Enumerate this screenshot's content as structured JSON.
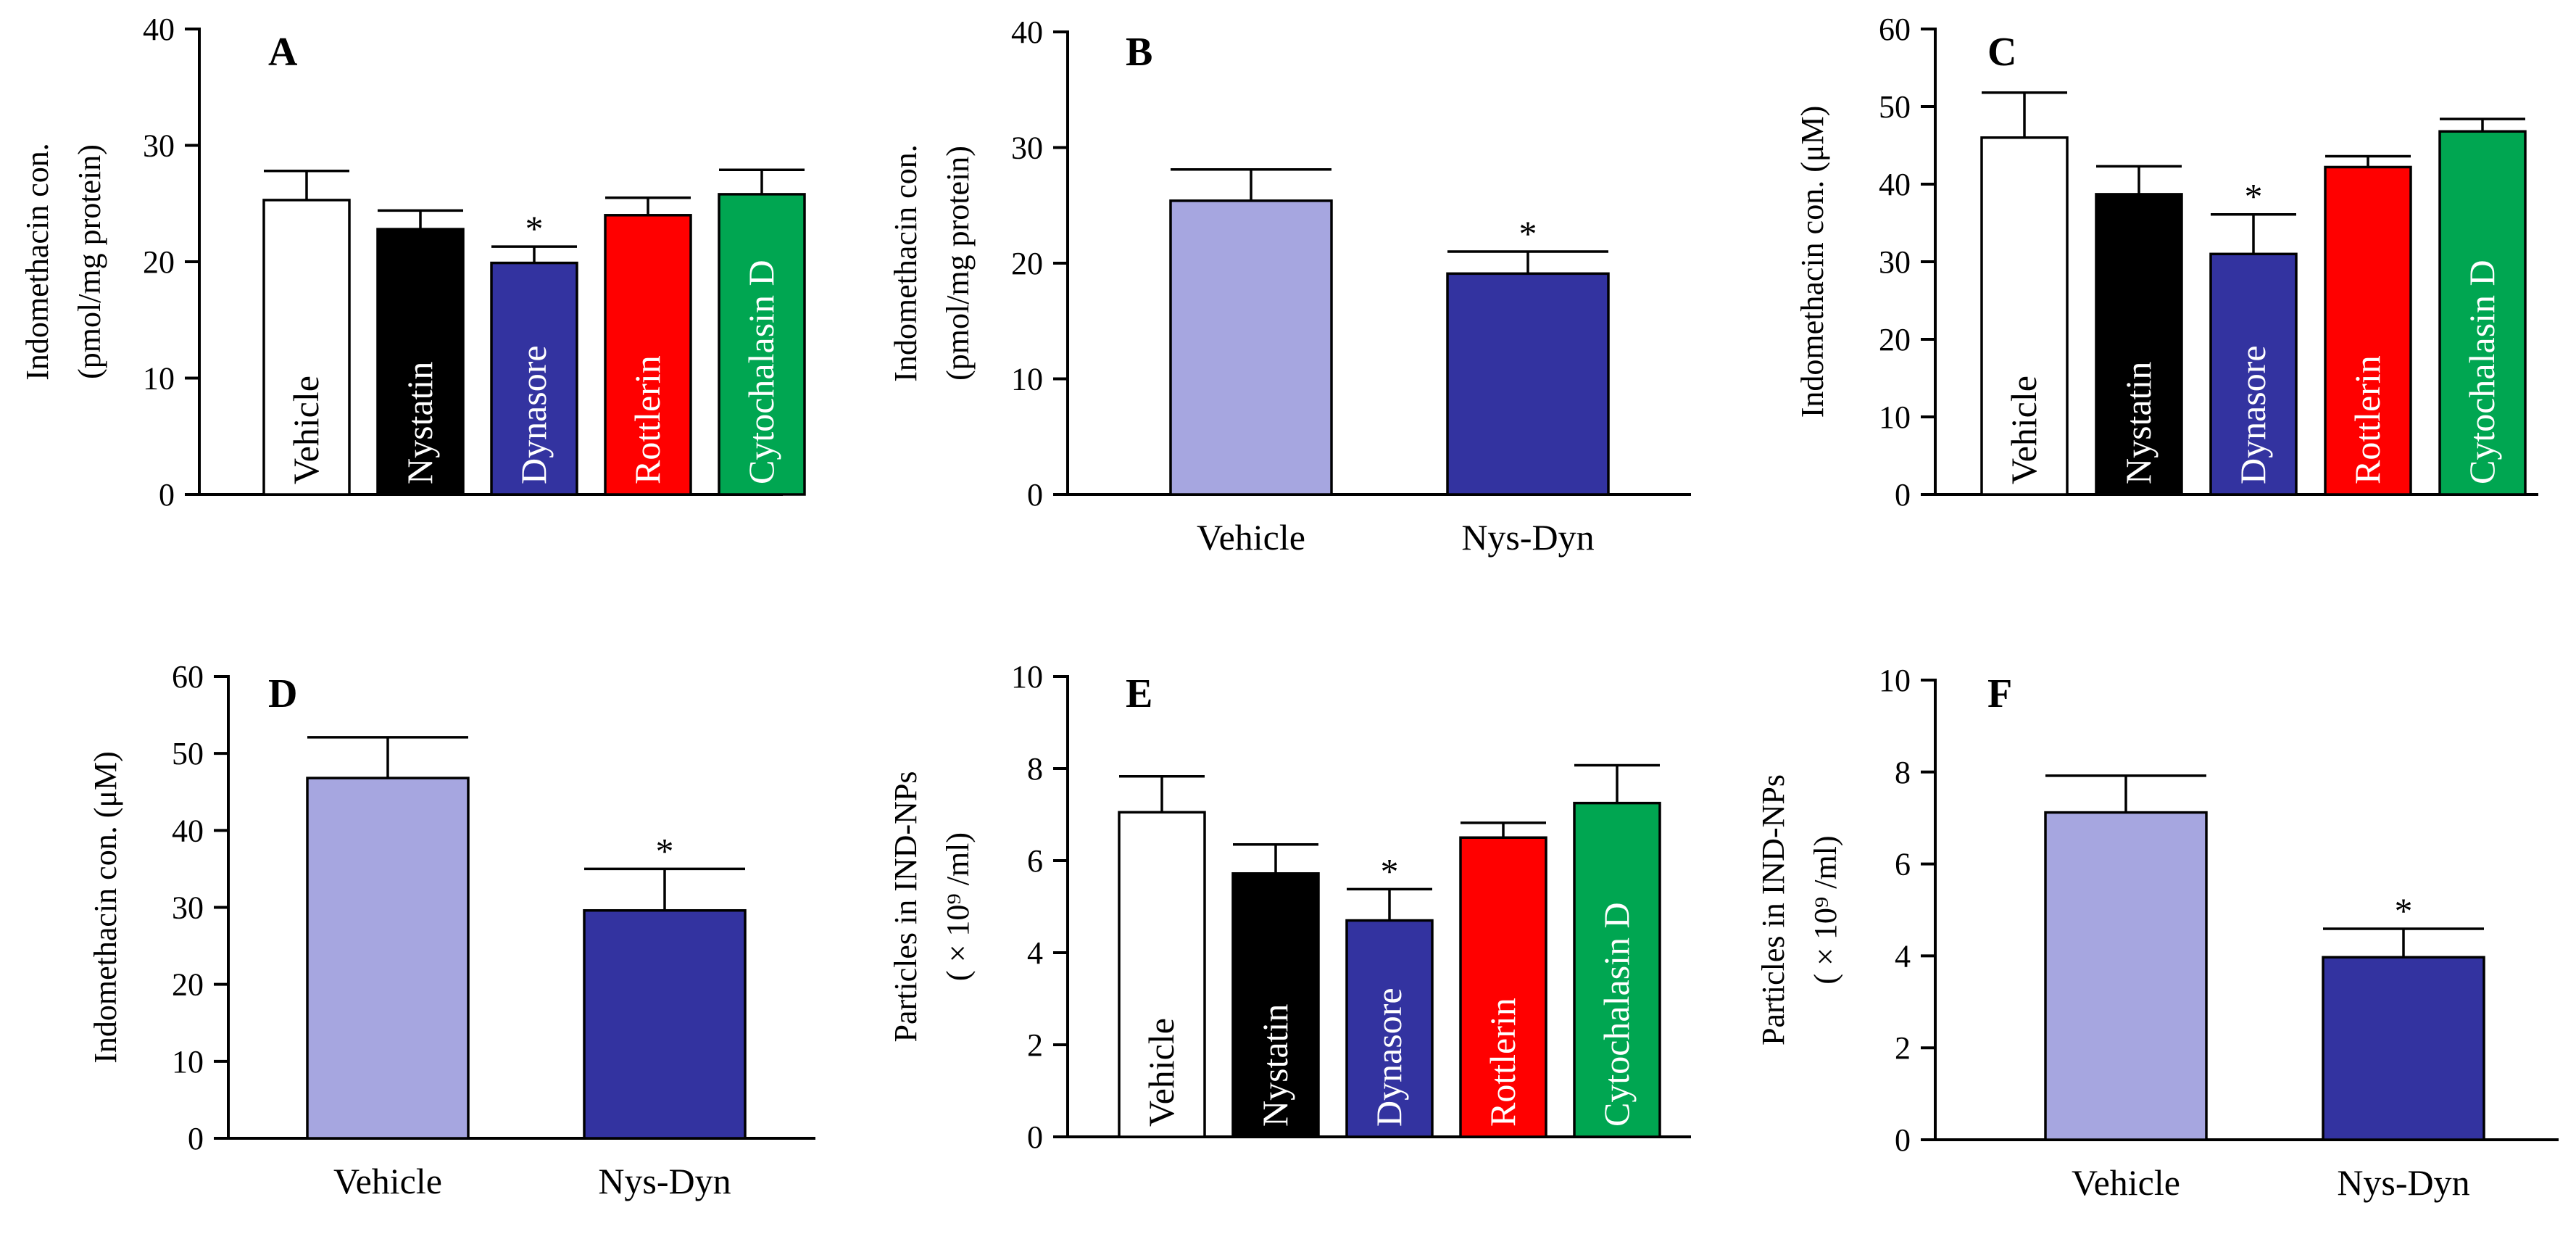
{
  "chart_data": [
    {
      "type": "bar",
      "panel_label": "A",
      "ylabel": [
        "Indomethacin con.",
        "(pmol/mg protein)"
      ],
      "ylim": [
        0,
        40
      ],
      "yticks": [
        0,
        10,
        20,
        30,
        40
      ],
      "labels_inside": true,
      "categories": [
        "Vehicle",
        "Nystatin",
        "Dynasore",
        "Rottlerin",
        "Cytochalasin D"
      ],
      "values": [
        25.3,
        22.8,
        19.9,
        24.0,
        25.8
      ],
      "errors": [
        2.5,
        1.6,
        1.4,
        1.5,
        2.1
      ],
      "significant": [
        false,
        false,
        true,
        false,
        false
      ],
      "colors": [
        "#ffffff",
        "#000000",
        "#3333a0",
        "#ff0000",
        "#00a651"
      ],
      "text_colors": [
        "#000000",
        "#ffffff",
        "#ffffff",
        "#ffffff",
        "#ffffff"
      ]
    },
    {
      "type": "bar",
      "panel_label": "B",
      "ylabel": [
        "Indomethacin con.",
        "(pmol/mg protein)"
      ],
      "ylim": [
        0,
        40
      ],
      "yticks": [
        0,
        10,
        20,
        30,
        40
      ],
      "labels_inside": false,
      "categories": [
        "Vehicle",
        "Nys-Dyn"
      ],
      "values": [
        25.4,
        19.1
      ],
      "errors": [
        2.7,
        1.9
      ],
      "significant": [
        false,
        true
      ],
      "colors": [
        "#a6a6e0",
        "#3333a0"
      ],
      "text_colors": [
        "#000000",
        "#000000"
      ]
    },
    {
      "type": "bar",
      "panel_label": "C",
      "ylabel": [
        "Indomethacin  con.  (μM)"
      ],
      "ylim": [
        0,
        60
      ],
      "yticks": [
        0,
        10,
        20,
        30,
        40,
        50,
        60
      ],
      "labels_inside": true,
      "categories": [
        "Vehicle",
        "Nystatin",
        "Dynasore",
        "Rottlerin",
        "Cytochalasin D"
      ],
      "values": [
        46.0,
        38.7,
        31.0,
        42.2,
        46.8
      ],
      "errors": [
        5.8,
        3.6,
        5.1,
        1.4,
        1.6
      ],
      "significant": [
        false,
        false,
        true,
        false,
        false
      ],
      "colors": [
        "#ffffff",
        "#000000",
        "#3333a0",
        "#ff0000",
        "#00a651"
      ],
      "text_colors": [
        "#000000",
        "#ffffff",
        "#ffffff",
        "#ffffff",
        "#ffffff"
      ]
    },
    {
      "type": "bar",
      "panel_label": "D",
      "ylabel": [
        "Indomethacin  con.  (μM)"
      ],
      "ylim": [
        0,
        60
      ],
      "yticks": [
        0,
        10,
        20,
        30,
        40,
        50,
        60
      ],
      "labels_inside": false,
      "categories": [
        "Vehicle",
        "Nys-Dyn"
      ],
      "values": [
        46.8,
        29.6
      ],
      "errors": [
        5.3,
        5.4
      ],
      "significant": [
        false,
        true
      ],
      "colors": [
        "#a6a6e0",
        "#3333a0"
      ],
      "text_colors": [
        "#000000",
        "#000000"
      ]
    },
    {
      "type": "bar",
      "panel_label": "E",
      "ylabel": [
        "Particles in IND-NPs",
        "( × 10⁹ /ml)"
      ],
      "ylim": [
        0,
        10
      ],
      "yticks": [
        0,
        2,
        4,
        6,
        8,
        10
      ],
      "labels_inside": true,
      "categories": [
        "Vehicle",
        "Nystatin",
        "Dynasore",
        "Rottlerin",
        "Cytochalasin D"
      ],
      "values": [
        7.05,
        5.72,
        4.7,
        6.5,
        7.25
      ],
      "errors": [
        0.78,
        0.63,
        0.68,
        0.32,
        0.82
      ],
      "significant": [
        false,
        false,
        true,
        false,
        false
      ],
      "colors": [
        "#ffffff",
        "#000000",
        "#3333a0",
        "#ff0000",
        "#00a651"
      ],
      "text_colors": [
        "#000000",
        "#ffffff",
        "#ffffff",
        "#ffffff",
        "#ffffff"
      ]
    },
    {
      "type": "bar",
      "panel_label": "F",
      "ylabel": [
        "Particles in IND-NPs",
        "( × 10⁹ /ml)"
      ],
      "ylim": [
        0,
        10
      ],
      "yticks": [
        0,
        2,
        4,
        6,
        8,
        10
      ],
      "labels_inside": false,
      "categories": [
        "Vehicle",
        "Nys-Dyn"
      ],
      "values": [
        7.12,
        3.97
      ],
      "errors": [
        0.8,
        0.62
      ],
      "significant": [
        false,
        true
      ],
      "colors": [
        "#a6a6e0",
        "#3333a0"
      ],
      "text_colors": [
        "#000000",
        "#000000"
      ]
    }
  ],
  "significance_marker": "*"
}
